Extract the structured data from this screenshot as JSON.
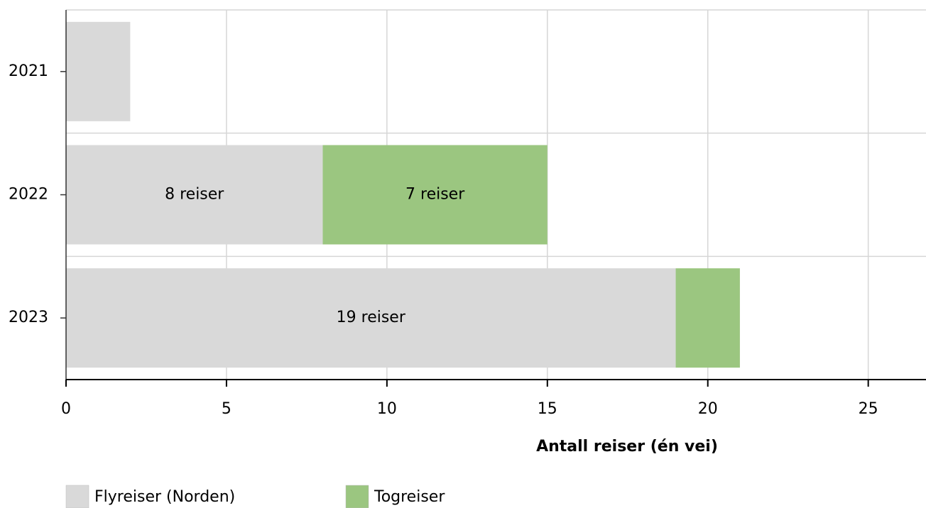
{
  "chart_data": {
    "type": "stacked_bar",
    "orientation": "horizontal",
    "categories": [
      "2021",
      "2022",
      "2023"
    ],
    "series": [
      {
        "name": "Flyreiser (Norden)",
        "color": "#d9d9d9",
        "values": [
          2,
          8,
          19
        ],
        "value_labels": [
          null,
          "8 reiser",
          "19 reiser"
        ]
      },
      {
        "name": "Togreiser",
        "color": "#9bc680",
        "values": [
          null,
          7,
          2
        ],
        "value_labels": [
          null,
          "7 reiser",
          null
        ]
      }
    ],
    "xlabel": "Antall reiser (én vei)",
    "xlim": [
      0,
      26.8
    ],
    "xticks": [
      0,
      5,
      10,
      15,
      20,
      25
    ],
    "grid": true,
    "legend": "bottom-left"
  }
}
